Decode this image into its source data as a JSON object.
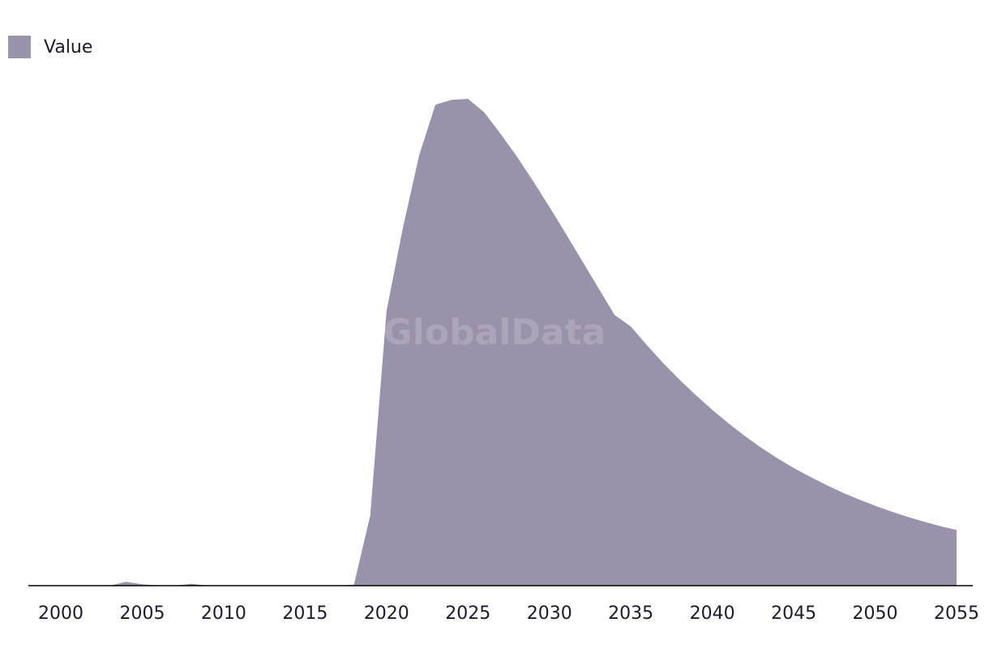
{
  "watermark": "GlobalData",
  "legend": {
    "label": "Value"
  },
  "colors": {
    "area": "#9a91aa",
    "axis": "#000000",
    "text": "#1f1b2e"
  },
  "chart_data": {
    "type": "area",
    "title": "",
    "xlabel": "",
    "ylabel": "",
    "grid": false,
    "legend_position": "top-left",
    "xlim": [
      2000,
      2055
    ],
    "ylim": [
      0,
      100
    ],
    "x_ticks": [
      2000,
      2005,
      2010,
      2015,
      2020,
      2025,
      2030,
      2035,
      2040,
      2045,
      2050,
      2055
    ],
    "series": [
      {
        "name": "Value",
        "x": [
          2000,
          2001,
          2002,
          2003,
          2004,
          2005,
          2006,
          2007,
          2008,
          2009,
          2010,
          2011,
          2012,
          2013,
          2014,
          2015,
          2016,
          2017,
          2018,
          2019,
          2020,
          2021,
          2022,
          2023,
          2024,
          2025,
          2026,
          2027,
          2028,
          2029,
          2030,
          2031,
          2032,
          2033,
          2034,
          2035,
          2036,
          2037,
          2038,
          2039,
          2040,
          2041,
          2042,
          2043,
          2044,
          2045,
          2046,
          2047,
          2048,
          2049,
          2050,
          2051,
          2052,
          2053,
          2054,
          2055
        ],
        "values": [
          0,
          0,
          0,
          0,
          0.8,
          0.3,
          0,
          0,
          0.4,
          0,
          0,
          0,
          0,
          0,
          0,
          0,
          0,
          0,
          0.2,
          14.5,
          56.7,
          73.8,
          88.8,
          99.3,
          100.3,
          100.5,
          97.7,
          93.3,
          88.6,
          83.5,
          78.2,
          72.7,
          67.1,
          61.5,
          55.9,
          53.5,
          49.6,
          45.9,
          42.5,
          39.3,
          36.3,
          33.5,
          30.9,
          28.5,
          26.3,
          24.3,
          22.5,
          20.8,
          19.2,
          17.8,
          16.5,
          15.3,
          14.2,
          13.2,
          12.3,
          11.5
        ]
      }
    ]
  }
}
